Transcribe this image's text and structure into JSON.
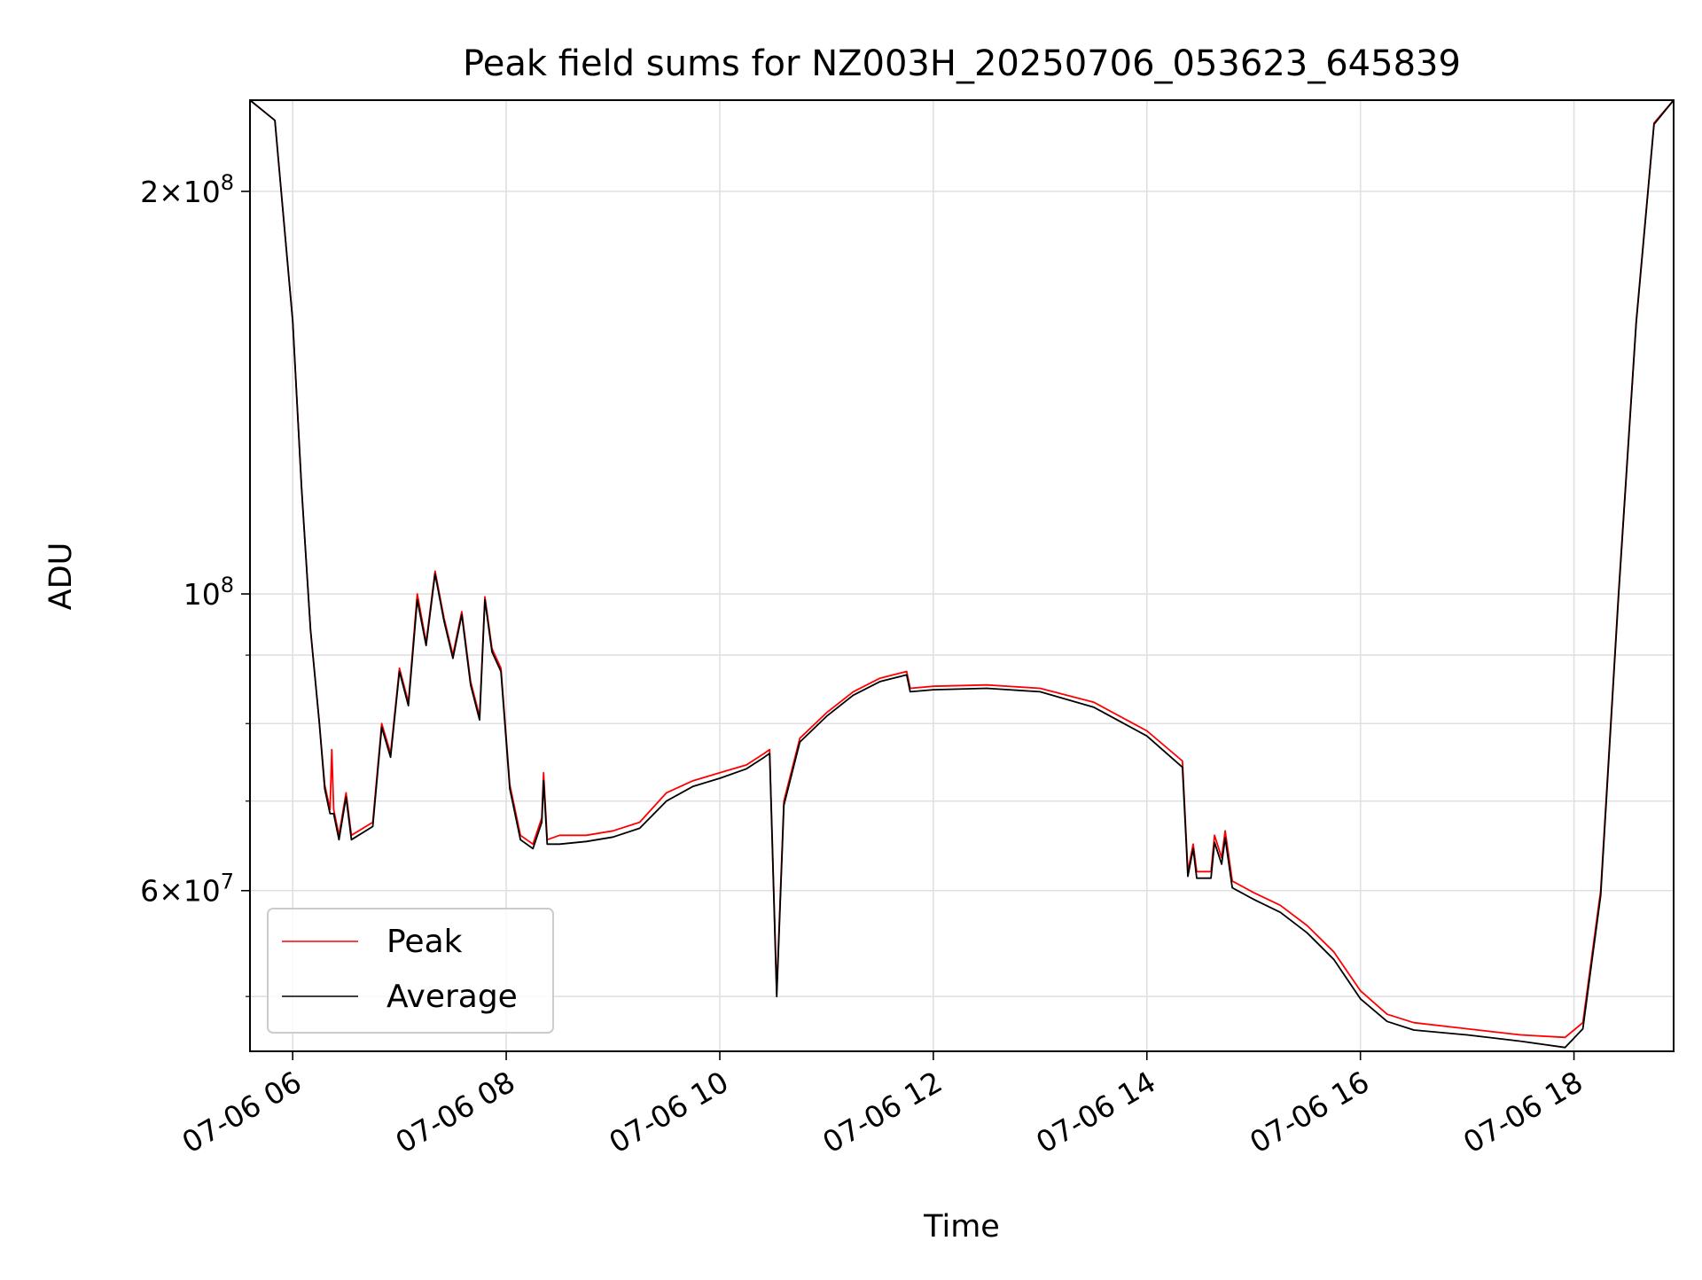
{
  "chart_data": {
    "type": "line",
    "title": "Peak field sums for NZ003H_20250706_053623_645839",
    "xlabel": "Time",
    "ylabel": "ADU",
    "y_scale": "log",
    "xlim": [
      "2025-07-06 05:36",
      "2025-07-06 18:56"
    ],
    "ylim": [
      45500000,
      234000000
    ],
    "x_ticks": [
      {
        "value": "2025-07-06 06:00",
        "label": "07-06 06"
      },
      {
        "value": "2025-07-06 08:00",
        "label": "07-06 08"
      },
      {
        "value": "2025-07-06 10:00",
        "label": "07-06 10"
      },
      {
        "value": "2025-07-06 12:00",
        "label": "07-06 12"
      },
      {
        "value": "2025-07-06 14:00",
        "label": "07-06 14"
      },
      {
        "value": "2025-07-06 16:00",
        "label": "07-06 16"
      },
      {
        "value": "2025-07-06 18:00",
        "label": "07-06 18"
      }
    ],
    "y_major_ticks": [
      {
        "value": 60000000,
        "mantissa": "6",
        "base": "10",
        "exp": "7"
      },
      {
        "value": 100000000,
        "mantissa": "",
        "base": "10",
        "exp": "8"
      },
      {
        "value": 200000000,
        "mantissa": "2",
        "base": "10",
        "exp": "8"
      }
    ],
    "y_minor_grid": [
      50000000,
      70000000,
      80000000,
      90000000
    ],
    "grid": true,
    "legend_position": "lower-left",
    "series": [
      {
        "name": "Peak",
        "color": "#ff0000",
        "points": [
          [
            "2025-07-06 05:36",
            234000000
          ],
          [
            "2025-07-06 05:50",
            226000000
          ],
          [
            "2025-07-06 06:00",
            160000000
          ],
          [
            "2025-07-06 06:05",
            120000000
          ],
          [
            "2025-07-06 06:10",
            94000000
          ],
          [
            "2025-07-06 06:15",
            80000000
          ],
          [
            "2025-07-06 06:18",
            72000000
          ],
          [
            "2025-07-06 06:21",
            69000000
          ],
          [
            "2025-07-06 06:22",
            76500000
          ],
          [
            "2025-07-06 06:23",
            69000000
          ],
          [
            "2025-07-06 06:26",
            66000000
          ],
          [
            "2025-07-06 06:30",
            71000000
          ],
          [
            "2025-07-06 06:33",
            66000000
          ],
          [
            "2025-07-06 06:45",
            67500000
          ],
          [
            "2025-07-06 06:50",
            80000000
          ],
          [
            "2025-07-06 06:55",
            76000000
          ],
          [
            "2025-07-06 07:00",
            88000000
          ],
          [
            "2025-07-06 07:05",
            83000000
          ],
          [
            "2025-07-06 07:10",
            100000000
          ],
          [
            "2025-07-06 07:15",
            92000000
          ],
          [
            "2025-07-06 07:20",
            104000000
          ],
          [
            "2025-07-06 07:25",
            96000000
          ],
          [
            "2025-07-06 07:30",
            90000000
          ],
          [
            "2025-07-06 07:35",
            97000000
          ],
          [
            "2025-07-06 07:40",
            86000000
          ],
          [
            "2025-07-06 07:45",
            81000000
          ],
          [
            "2025-07-06 07:48",
            99500000
          ],
          [
            "2025-07-06 07:52",
            91000000
          ],
          [
            "2025-07-06 07:57",
            88000000
          ],
          [
            "2025-07-06 08:02",
            72000000
          ],
          [
            "2025-07-06 08:08",
            66000000
          ],
          [
            "2025-07-06 08:15",
            65000000
          ],
          [
            "2025-07-06 08:20",
            68000000
          ],
          [
            "2025-07-06 08:21",
            73500000
          ],
          [
            "2025-07-06 08:23",
            65500000
          ],
          [
            "2025-07-06 08:30",
            66000000
          ],
          [
            "2025-07-06 08:45",
            66000000
          ],
          [
            "2025-07-06 09:00",
            66500000
          ],
          [
            "2025-07-06 09:15",
            67500000
          ],
          [
            "2025-07-06 09:30",
            71000000
          ],
          [
            "2025-07-06 09:45",
            72500000
          ],
          [
            "2025-07-06 10:00",
            73500000
          ],
          [
            "2025-07-06 10:15",
            74500000
          ],
          [
            "2025-07-06 10:25",
            76000000
          ],
          [
            "2025-07-06 10:28",
            76500000
          ],
          [
            "2025-07-06 10:32",
            50500000
          ],
          [
            "2025-07-06 10:36",
            70000000
          ],
          [
            "2025-07-06 10:45",
            78000000
          ],
          [
            "2025-07-06 11:00",
            81500000
          ],
          [
            "2025-07-06 11:15",
            84500000
          ],
          [
            "2025-07-06 11:30",
            86500000
          ],
          [
            "2025-07-06 11:45",
            87500000
          ],
          [
            "2025-07-06 11:47",
            85000000
          ],
          [
            "2025-07-06 12:00",
            85300000
          ],
          [
            "2025-07-06 12:30",
            85500000
          ],
          [
            "2025-07-06 13:00",
            85000000
          ],
          [
            "2025-07-06 13:30",
            83000000
          ],
          [
            "2025-07-06 14:00",
            79000000
          ],
          [
            "2025-07-06 14:20",
            75000000
          ],
          [
            "2025-07-06 14:23",
            62000000
          ],
          [
            "2025-07-06 14:26",
            65000000
          ],
          [
            "2025-07-06 14:28",
            62000000
          ],
          [
            "2025-07-06 14:36",
            62000000
          ],
          [
            "2025-07-06 14:38",
            66000000
          ],
          [
            "2025-07-06 14:42",
            63500000
          ],
          [
            "2025-07-06 14:44",
            66500000
          ],
          [
            "2025-07-06 14:48",
            61000000
          ],
          [
            "2025-07-06 15:00",
            59800000
          ],
          [
            "2025-07-06 15:15",
            58500000
          ],
          [
            "2025-07-06 15:30",
            56500000
          ],
          [
            "2025-07-06 15:45",
            54000000
          ],
          [
            "2025-07-06 16:00",
            50500000
          ],
          [
            "2025-07-06 16:15",
            48500000
          ],
          [
            "2025-07-06 16:30",
            47800000
          ],
          [
            "2025-07-06 17:00",
            47300000
          ],
          [
            "2025-07-06 17:30",
            46800000
          ],
          [
            "2025-07-06 17:55",
            46600000
          ],
          [
            "2025-07-06 18:05",
            47800000
          ],
          [
            "2025-07-06 18:15",
            60000000
          ],
          [
            "2025-07-06 18:25",
            100000000
          ],
          [
            "2025-07-06 18:35",
            160000000
          ],
          [
            "2025-07-06 18:45",
            225000000
          ],
          [
            "2025-07-06 18:56",
            234000000
          ]
        ]
      },
      {
        "name": "Average",
        "color": "#000000",
        "points": [
          [
            "2025-07-06 05:36",
            234000000
          ],
          [
            "2025-07-06 05:50",
            226000000
          ],
          [
            "2025-07-06 06:00",
            160000000
          ],
          [
            "2025-07-06 06:05",
            120000000
          ],
          [
            "2025-07-06 06:10",
            94000000
          ],
          [
            "2025-07-06 06:15",
            80000000
          ],
          [
            "2025-07-06 06:18",
            71500000
          ],
          [
            "2025-07-06 06:21",
            68500000
          ],
          [
            "2025-07-06 06:23",
            68500000
          ],
          [
            "2025-07-06 06:26",
            65500000
          ],
          [
            "2025-07-06 06:30",
            70500000
          ],
          [
            "2025-07-06 06:33",
            65500000
          ],
          [
            "2025-07-06 06:45",
            67000000
          ],
          [
            "2025-07-06 06:50",
            79500000
          ],
          [
            "2025-07-06 06:55",
            75500000
          ],
          [
            "2025-07-06 07:00",
            87500000
          ],
          [
            "2025-07-06 07:05",
            82500000
          ],
          [
            "2025-07-06 07:10",
            99000000
          ],
          [
            "2025-07-06 07:15",
            91500000
          ],
          [
            "2025-07-06 07:20",
            103500000
          ],
          [
            "2025-07-06 07:25",
            95500000
          ],
          [
            "2025-07-06 07:30",
            89500000
          ],
          [
            "2025-07-06 07:35",
            96500000
          ],
          [
            "2025-07-06 07:40",
            85500000
          ],
          [
            "2025-07-06 07:45",
            80500000
          ],
          [
            "2025-07-06 07:48",
            99000000
          ],
          [
            "2025-07-06 07:52",
            90500000
          ],
          [
            "2025-07-06 07:57",
            87500000
          ],
          [
            "2025-07-06 08:02",
            71500000
          ],
          [
            "2025-07-06 08:08",
            65500000
          ],
          [
            "2025-07-06 08:15",
            64500000
          ],
          [
            "2025-07-06 08:20",
            67500000
          ],
          [
            "2025-07-06 08:21",
            72500000
          ],
          [
            "2025-07-06 08:23",
            65000000
          ],
          [
            "2025-07-06 08:30",
            65000000
          ],
          [
            "2025-07-06 08:45",
            65300000
          ],
          [
            "2025-07-06 09:00",
            65800000
          ],
          [
            "2025-07-06 09:15",
            66800000
          ],
          [
            "2025-07-06 09:30",
            70000000
          ],
          [
            "2025-07-06 09:45",
            71800000
          ],
          [
            "2025-07-06 10:00",
            72800000
          ],
          [
            "2025-07-06 10:15",
            74000000
          ],
          [
            "2025-07-06 10:25",
            75500000
          ],
          [
            "2025-07-06 10:28",
            76000000
          ],
          [
            "2025-07-06 10:32",
            50000000
          ],
          [
            "2025-07-06 10:36",
            69500000
          ],
          [
            "2025-07-06 10:45",
            77500000
          ],
          [
            "2025-07-06 11:00",
            81000000
          ],
          [
            "2025-07-06 11:15",
            84000000
          ],
          [
            "2025-07-06 11:30",
            86000000
          ],
          [
            "2025-07-06 11:45",
            87000000
          ],
          [
            "2025-07-06 11:47",
            84500000
          ],
          [
            "2025-07-06 12:00",
            84800000
          ],
          [
            "2025-07-06 12:30",
            85000000
          ],
          [
            "2025-07-06 13:00",
            84500000
          ],
          [
            "2025-07-06 13:30",
            82300000
          ],
          [
            "2025-07-06 14:00",
            78300000
          ],
          [
            "2025-07-06 14:20",
            74200000
          ],
          [
            "2025-07-06 14:23",
            61500000
          ],
          [
            "2025-07-06 14:26",
            64500000
          ],
          [
            "2025-07-06 14:28",
            61300000
          ],
          [
            "2025-07-06 14:36",
            61300000
          ],
          [
            "2025-07-06 14:38",
            65200000
          ],
          [
            "2025-07-06 14:42",
            62800000
          ],
          [
            "2025-07-06 14:44",
            65700000
          ],
          [
            "2025-07-06 14:48",
            60300000
          ],
          [
            "2025-07-06 15:00",
            59100000
          ],
          [
            "2025-07-06 15:15",
            57800000
          ],
          [
            "2025-07-06 15:30",
            55800000
          ],
          [
            "2025-07-06 15:45",
            53300000
          ],
          [
            "2025-07-06 16:00",
            49800000
          ],
          [
            "2025-07-06 16:15",
            47900000
          ],
          [
            "2025-07-06 16:30",
            47200000
          ],
          [
            "2025-07-06 17:00",
            46800000
          ],
          [
            "2025-07-06 17:30",
            46300000
          ],
          [
            "2025-07-06 17:55",
            45800000
          ],
          [
            "2025-07-06 18:05",
            47300000
          ],
          [
            "2025-07-06 18:15",
            59500000
          ],
          [
            "2025-07-06 18:25",
            99500000
          ],
          [
            "2025-07-06 18:35",
            159500000
          ],
          [
            "2025-07-06 18:45",
            224500000
          ],
          [
            "2025-07-06 18:56",
            234000000
          ]
        ]
      }
    ]
  }
}
